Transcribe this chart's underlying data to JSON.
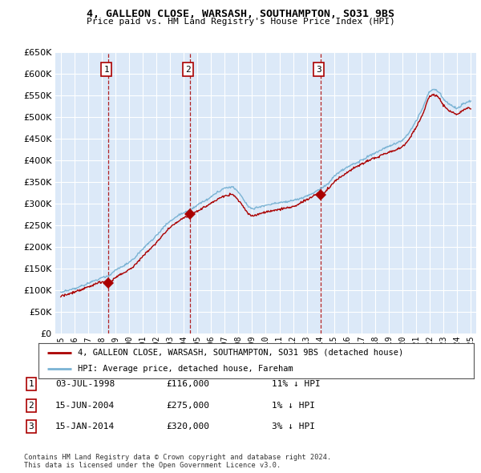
{
  "title": "4, GALLEON CLOSE, WARSASH, SOUTHAMPTON, SO31 9BS",
  "subtitle": "Price paid vs. HM Land Registry's House Price Index (HPI)",
  "ylim": [
    0,
    650000
  ],
  "yticks": [
    0,
    50000,
    100000,
    150000,
    200000,
    250000,
    300000,
    350000,
    400000,
    450000,
    500000,
    550000,
    600000,
    650000
  ],
  "background_color": "#ffffff",
  "plot_background": "#dce9f8",
  "grid_color": "#ffffff",
  "hpi_color": "#7ab3d4",
  "price_color": "#aa0000",
  "sales": [
    {
      "num": 1,
      "date_x": 1998.5,
      "price": 116000,
      "label": "03-JUL-1998",
      "amount": "£116,000",
      "pct": "11% ↓ HPI"
    },
    {
      "num": 2,
      "date_x": 2004.45,
      "price": 275000,
      "label": "15-JUN-2004",
      "amount": "£275,000",
      "pct": "1% ↓ HPI"
    },
    {
      "num": 3,
      "date_x": 2014.04,
      "price": 320000,
      "label": "15-JAN-2014",
      "amount": "£320,000",
      "pct": "3% ↓ HPI"
    }
  ],
  "legend_label_red": "4, GALLEON CLOSE, WARSASH, SOUTHAMPTON, SO31 9BS (detached house)",
  "legend_label_blue": "HPI: Average price, detached house, Fareham",
  "footnote": "Contains HM Land Registry data © Crown copyright and database right 2024.\nThis data is licensed under the Open Government Licence v3.0.",
  "xtick_years": [
    1995,
    1996,
    1997,
    1998,
    1999,
    2000,
    2001,
    2002,
    2003,
    2004,
    2005,
    2006,
    2007,
    2008,
    2009,
    2010,
    2011,
    2012,
    2013,
    2014,
    2015,
    2016,
    2017,
    2018,
    2019,
    2020,
    2021,
    2022,
    2023,
    2024,
    2025
  ]
}
